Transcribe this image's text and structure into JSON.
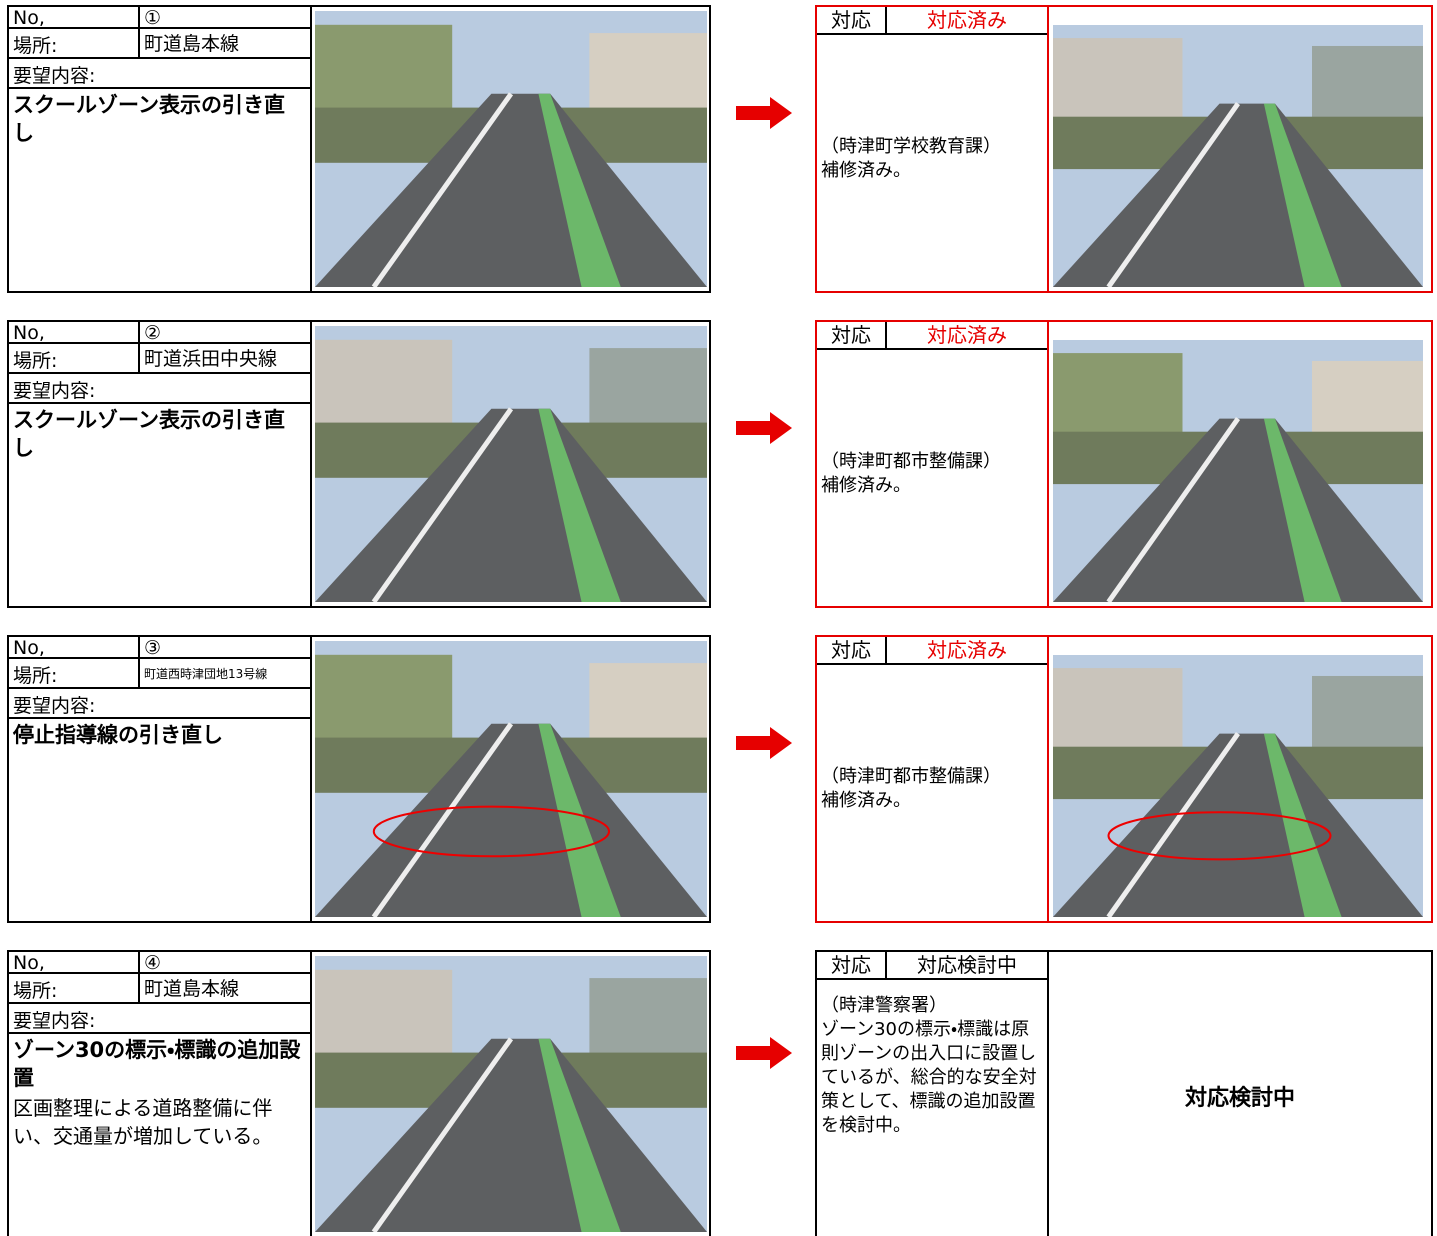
{
  "labels": {
    "no": "No,",
    "location": "場所:",
    "request": "要望内容:",
    "response": "対応"
  },
  "items": [
    {
      "no": "①",
      "location": "町道島本線",
      "request": "スクールゾーン表示の引き直し",
      "status": "対応済み",
      "highlight_color": "#e60000",
      "response_org": "（時津町学校教育課）",
      "response_body": "補修済み。"
    },
    {
      "no": "②",
      "location": "町道浜田中央線",
      "request": "スクールゾーン表示の引き直し",
      "status": "対応済み",
      "highlight_color": "#e60000",
      "response_org": "（時津町都市整備課）",
      "response_body": "補修済み。"
    },
    {
      "no": "③",
      "location": "町道西時津団地13号線",
      "request": "停止指導線の引き直し",
      "status": "対応済み",
      "highlight_color": "#e60000",
      "response_org": "（時津町都市整備課）",
      "response_body": "補修済み。"
    },
    {
      "no": "④",
      "location": "町道島本線",
      "request": "ゾーン30の標示・標識の追加設置",
      "detail": "区画整理による道路整備に伴い、交通量が増加している。",
      "status": "対応検討中",
      "response_org": "（時津警察署）",
      "response_body": "ゾーン30の標示・標識は原則ゾーンの出入口に設置しているが、総合的な安全対策として、標識の追加設置を検討中。",
      "result_text": "対応検討中"
    }
  ]
}
